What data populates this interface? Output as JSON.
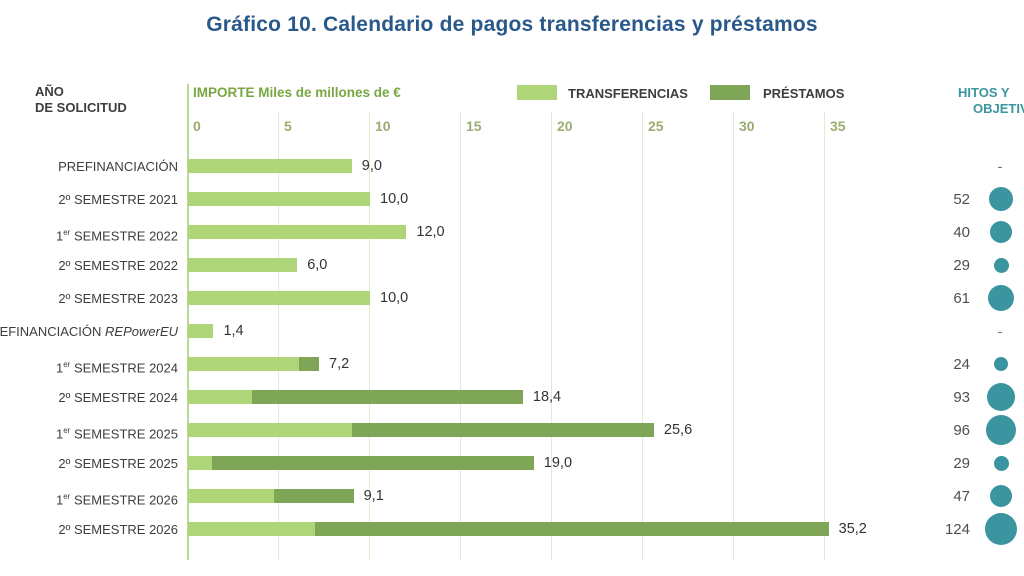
{
  "title": "Gráfico 10. Calendario de pagos transferencias y préstamos",
  "header": {
    "y_axis_title": "AÑO\nDE SOLICITUD",
    "x_axis_title_bold": "IMPORTE",
    "x_axis_title_rest": " Miles de millones de €",
    "legend": [
      {
        "label": "TRANSFERENCIAS",
        "color": "#aed578"
      },
      {
        "label": "PRÉSTAMOS",
        "color": "#7fa656"
      }
    ],
    "right_header_line1": "HITOS Y",
    "right_header_line2": "OBJETIVOS"
  },
  "colors": {
    "title_blue": "#29588a",
    "transferencias_green": "#aed578",
    "prestamos_green": "#7fa656",
    "axis_title_green": "#78a742",
    "tick_label_green": "#9cad70",
    "gridline_green": "#dfecce",
    "axis_line_green": "#bcd896",
    "hitos_teal": "#3a95a0",
    "text_dark": "#3d3d3d",
    "value_text": "#333333",
    "hito_text": "#4f4f4f",
    "dash_text": "#666666"
  },
  "chart_data": {
    "type": "bar",
    "orientation": "horizontal",
    "stacked": true,
    "title": "Gráfico 10. Calendario de pagos transferencias y préstamos",
    "xlabel": "IMPORTE Miles de millones de €",
    "ylabel": "AÑO DE SOLICITUD",
    "xlim": [
      0,
      35
    ],
    "x_ticks": [
      0,
      5,
      10,
      15,
      20,
      25,
      30,
      35
    ],
    "grid": true,
    "legend_position": "top",
    "series_names": [
      "TRANSFERENCIAS",
      "PRÉSTAMOS"
    ],
    "rows": [
      {
        "label": "PREFINANCIACIÓN",
        "transferencias": 9.0,
        "prestamos": 0,
        "value_label": "9,0",
        "hitos": "-",
        "circle_d": 0
      },
      {
        "label": "2º SEMESTRE 2021",
        "transferencias": 10.0,
        "prestamos": 0,
        "value_label": "10,0",
        "hitos": "52",
        "circle_d": 24
      },
      {
        "label": "1er SEMESTRE 2022",
        "transferencias": 12.0,
        "prestamos": 0,
        "value_label": "12,0",
        "hitos": "40",
        "circle_d": 22
      },
      {
        "label": "2º SEMESTRE 2022",
        "transferencias": 6.0,
        "prestamos": 0,
        "value_label": "6,0",
        "hitos": "29",
        "circle_d": 15
      },
      {
        "label": "2º SEMESTRE 2023",
        "transferencias": 10.0,
        "prestamos": 0,
        "value_label": "10,0",
        "hitos": "61",
        "circle_d": 26
      },
      {
        "label": "PREFINANCIACIÓN REPowerEU",
        "transferencias": 1.4,
        "prestamos": 0,
        "value_label": "1,4",
        "hitos": "-",
        "circle_d": 0
      },
      {
        "label": "1er SEMESTRE 2024",
        "transferencias": 6.1,
        "prestamos": 1.1,
        "value_label": "7,2",
        "hitos": "24",
        "circle_d": 14
      },
      {
        "label": "2º SEMESTRE 2024",
        "transferencias": 3.5,
        "prestamos": 14.9,
        "value_label": "18,4",
        "hitos": "93",
        "circle_d": 28
      },
      {
        "label": "1er SEMESTRE 2025",
        "transferencias": 9.0,
        "prestamos": 16.6,
        "value_label": "25,6",
        "hitos": "96",
        "circle_d": 30
      },
      {
        "label": "2º SEMESTRE 2025",
        "transferencias": 1.3,
        "prestamos": 17.7,
        "value_label": "19,0",
        "hitos": "29",
        "circle_d": 15
      },
      {
        "label": "1er SEMESTRE 2026",
        "transferencias": 4.7,
        "prestamos": 4.4,
        "value_label": "9,1",
        "hitos": "47",
        "circle_d": 22
      },
      {
        "label": "2º SEMESTRE 2026",
        "transferencias": 7.0,
        "prestamos": 28.2,
        "value_label": "35,2",
        "hitos": "124",
        "circle_d": 32
      }
    ]
  }
}
